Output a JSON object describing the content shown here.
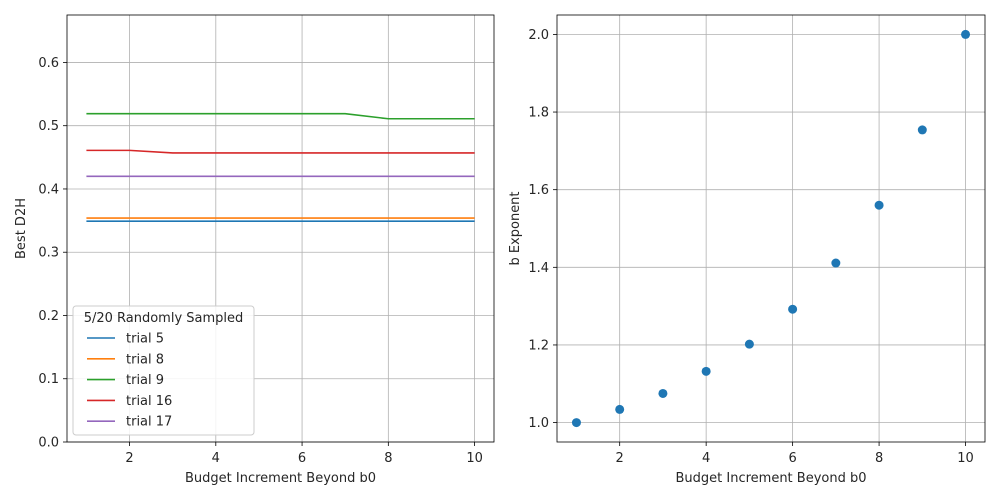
{
  "chart_data": [
    {
      "type": "line",
      "xlabel": "Budget Increment Beyond b0",
      "ylabel": "Best D2H",
      "xlim": [
        0.55,
        10.45
      ],
      "ylim": [
        0.0,
        0.675
      ],
      "xticks": [
        2,
        4,
        6,
        8,
        10
      ],
      "yticks": [
        0.0,
        0.1,
        0.2,
        0.3,
        0.4,
        0.5,
        0.6
      ],
      "grid": true,
      "legend": {
        "title": "5/20 Randomly Sampled",
        "placement": "lower-left"
      },
      "x": [
        1,
        2,
        3,
        4,
        5,
        6,
        7,
        8,
        9,
        10
      ],
      "series": [
        {
          "name": "trial 5",
          "color": "#1f77b4",
          "values": [
            0.349,
            0.349,
            0.349,
            0.349,
            0.349,
            0.349,
            0.349,
            0.349,
            0.349,
            0.349
          ]
        },
        {
          "name": "trial 8",
          "color": "#ff7f0e",
          "values": [
            0.354,
            0.354,
            0.354,
            0.354,
            0.354,
            0.354,
            0.354,
            0.354,
            0.354,
            0.354
          ]
        },
        {
          "name": "trial 9",
          "color": "#2ca02c",
          "values": [
            0.519,
            0.519,
            0.519,
            0.519,
            0.519,
            0.519,
            0.519,
            0.511,
            0.511,
            0.511
          ]
        },
        {
          "name": "trial 16",
          "color": "#d62728",
          "values": [
            0.461,
            0.461,
            0.457,
            0.457,
            0.457,
            0.457,
            0.457,
            0.457,
            0.457,
            0.457
          ]
        },
        {
          "name": "trial 17",
          "color": "#9467bd",
          "values": [
            0.42,
            0.42,
            0.42,
            0.42,
            0.42,
            0.42,
            0.42,
            0.42,
            0.42,
            0.42
          ]
        }
      ]
    },
    {
      "type": "scatter",
      "xlabel": "Budget Increment Beyond b0",
      "ylabel": "b Exponent",
      "xlim": [
        0.55,
        10.45
      ],
      "ylim": [
        0.95,
        2.05
      ],
      "xticks": [
        2,
        4,
        6,
        8,
        10
      ],
      "yticks": [
        1.0,
        1.2,
        1.4,
        1.6,
        1.8,
        2.0
      ],
      "grid": true,
      "color": "#1f77b4",
      "x": [
        1,
        2,
        3,
        4,
        5,
        6,
        7,
        8,
        9,
        10
      ],
      "y": [
        1.0,
        1.034,
        1.075,
        1.132,
        1.202,
        1.292,
        1.411,
        1.56,
        1.754,
        2.0
      ]
    }
  ]
}
